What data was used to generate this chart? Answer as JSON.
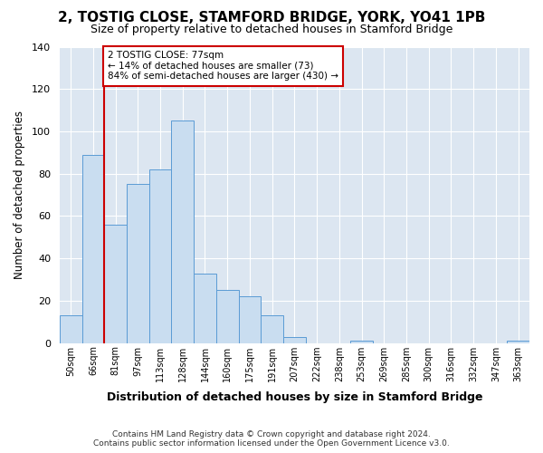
{
  "title": "2, TOSTIG CLOSE, STAMFORD BRIDGE, YORK, YO41 1PB",
  "subtitle": "Size of property relative to detached houses in Stamford Bridge",
  "xlabel": "Distribution of detached houses by size in Stamford Bridge",
  "ylabel": "Number of detached properties",
  "bin_labels": [
    "50sqm",
    "66sqm",
    "81sqm",
    "97sqm",
    "113sqm",
    "128sqm",
    "144sqm",
    "160sqm",
    "175sqm",
    "191sqm",
    "207sqm",
    "222sqm",
    "238sqm",
    "253sqm",
    "269sqm",
    "285sqm",
    "300sqm",
    "316sqm",
    "332sqm",
    "347sqm",
    "363sqm"
  ],
  "bin_values": [
    13,
    89,
    56,
    75,
    82,
    105,
    33,
    25,
    22,
    13,
    3,
    0,
    0,
    1,
    0,
    0,
    0,
    0,
    0,
    0,
    1
  ],
  "bar_color": "#c9ddf0",
  "bar_edge_color": "#5b9bd5",
  "vline_x": 2,
  "vline_color": "#cc0000",
  "ylim": [
    0,
    140
  ],
  "yticks": [
    0,
    20,
    40,
    60,
    80,
    100,
    120,
    140
  ],
  "annotation_text": "2 TOSTIG CLOSE: 77sqm\n← 14% of detached houses are smaller (73)\n84% of semi-detached houses are larger (430) →",
  "annotation_box_color": "#ffffff",
  "annotation_box_edge": "#cc0000",
  "footer_text": "Contains HM Land Registry data © Crown copyright and database right 2024.\nContains public sector information licensed under the Open Government Licence v3.0.",
  "fig_bg_color": "#ffffff",
  "plot_bg_color": "#dce6f1",
  "grid_color": "#c0cfe0",
  "title_fontsize": 11,
  "subtitle_fontsize": 9
}
